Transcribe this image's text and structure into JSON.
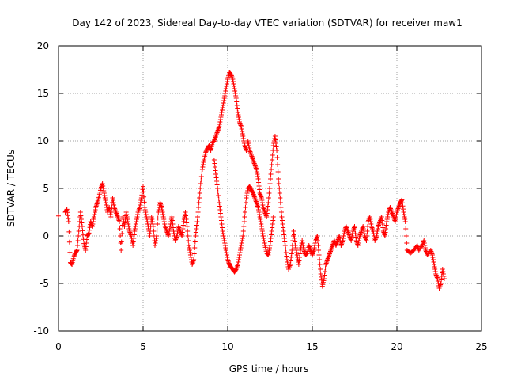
{
  "chart_data": {
    "type": "scatter",
    "title": "Day 142 of 2023, Sidereal Day-to-day VTEC variation (SDTVAR) for receiver maw1",
    "xlabel": "GPS time / hours",
    "ylabel": "SDTVAR / TECUs",
    "xlim": [
      0,
      25
    ],
    "ylim": [
      -10,
      20
    ],
    "xticks": [
      0,
      5,
      10,
      15,
      20,
      25
    ],
    "yticks": [
      -10,
      -5,
      0,
      5,
      10,
      15,
      20
    ],
    "grid": true,
    "marker": "+",
    "color": "#ff0000",
    "series": [
      {
        "name": "SDTVAR",
        "points": [
          [
            0.0,
            2.1
          ],
          [
            0.4,
            2.5
          ],
          [
            0.5,
            2.8
          ],
          [
            0.6,
            1.5
          ],
          [
            0.7,
            -2.8
          ],
          [
            0.8,
            -3.0
          ],
          [
            0.9,
            -2.2
          ],
          [
            1.0,
            -1.8
          ],
          [
            1.1,
            -1.5
          ],
          [
            1.2,
            0.5
          ],
          [
            1.3,
            2.5
          ],
          [
            1.4,
            1.0
          ],
          [
            1.5,
            -0.8
          ],
          [
            1.6,
            -1.5
          ],
          [
            1.7,
            0.0
          ],
          [
            1.8,
            0.3
          ],
          [
            1.9,
            1.5
          ],
          [
            2.0,
            1.0
          ],
          [
            2.1,
            2.0
          ],
          [
            2.2,
            3.0
          ],
          [
            2.3,
            3.5
          ],
          [
            2.4,
            4.2
          ],
          [
            2.5,
            5.0
          ],
          [
            2.6,
            5.5
          ],
          [
            2.7,
            4.5
          ],
          [
            2.8,
            3.5
          ],
          [
            2.9,
            2.5
          ],
          [
            3.0,
            3.0
          ],
          [
            3.1,
            2.0
          ],
          [
            3.2,
            4.0
          ],
          [
            3.3,
            3.0
          ],
          [
            3.4,
            2.5
          ],
          [
            3.5,
            2.0
          ],
          [
            3.6,
            1.5
          ],
          [
            3.7,
            -1.5
          ],
          [
            3.8,
            2.0
          ],
          [
            3.9,
            1.0
          ],
          [
            4.0,
            2.5
          ],
          [
            4.1,
            1.5
          ],
          [
            4.2,
            0.5
          ],
          [
            4.3,
            0.0
          ],
          [
            4.4,
            -1.0
          ],
          [
            4.5,
            0.5
          ],
          [
            4.6,
            1.5
          ],
          [
            4.7,
            2.5
          ],
          [
            4.8,
            3.0
          ],
          [
            4.9,
            4.0
          ],
          [
            5.0,
            5.2
          ],
          [
            5.1,
            3.0
          ],
          [
            5.2,
            2.0
          ],
          [
            5.3,
            1.0
          ],
          [
            5.4,
            0.0
          ],
          [
            5.5,
            2.0
          ],
          [
            5.6,
            1.0
          ],
          [
            5.7,
            -1.0
          ],
          [
            5.8,
            0.0
          ],
          [
            5.9,
            2.5
          ],
          [
            6.0,
            3.5
          ],
          [
            6.1,
            3.0
          ],
          [
            6.2,
            2.0
          ],
          [
            6.3,
            1.0
          ],
          [
            6.4,
            0.5
          ],
          [
            6.5,
            0.0
          ],
          [
            6.6,
            1.0
          ],
          [
            6.7,
            2.0
          ],
          [
            6.8,
            0.5
          ],
          [
            6.9,
            -0.5
          ],
          [
            7.0,
            0.0
          ],
          [
            7.1,
            1.0
          ],
          [
            7.2,
            0.5
          ],
          [
            7.3,
            0.0
          ],
          [
            7.4,
            1.5
          ],
          [
            7.5,
            2.5
          ],
          [
            7.6,
            1.0
          ],
          [
            7.7,
            -1.0
          ],
          [
            7.8,
            -2.0
          ],
          [
            7.9,
            -3.0
          ],
          [
            8.0,
            -2.5
          ],
          [
            8.1,
            0.0
          ],
          [
            8.2,
            1.5
          ],
          [
            8.3,
            3.5
          ],
          [
            8.4,
            5.5
          ],
          [
            8.5,
            7.0
          ],
          [
            8.6,
            8.0
          ],
          [
            8.7,
            8.8
          ],
          [
            8.8,
            9.2
          ],
          [
            8.9,
            9.5
          ],
          [
            9.0,
            9.0
          ],
          [
            9.1,
            9.8
          ],
          [
            9.2,
            10.0
          ],
          [
            9.3,
            10.5
          ],
          [
            9.4,
            11.0
          ],
          [
            9.5,
            11.5
          ],
          [
            9.6,
            12.5
          ],
          [
            9.7,
            13.5
          ],
          [
            9.8,
            14.5
          ],
          [
            9.9,
            15.5
          ],
          [
            10.0,
            16.5
          ],
          [
            10.1,
            17.2
          ],
          [
            10.2,
            17.0
          ],
          [
            10.3,
            16.5
          ],
          [
            10.4,
            15.5
          ],
          [
            10.5,
            14.5
          ],
          [
            10.6,
            13.0
          ],
          [
            10.7,
            12.0
          ],
          [
            10.8,
            11.5
          ],
          [
            10.9,
            10.5
          ],
          [
            11.0,
            9.5
          ],
          [
            11.1,
            9.0
          ],
          [
            11.2,
            10.0
          ],
          [
            11.3,
            9.0
          ],
          [
            11.4,
            8.5
          ],
          [
            11.5,
            8.0
          ],
          [
            11.6,
            7.5
          ],
          [
            11.7,
            7.0
          ],
          [
            11.8,
            6.0
          ],
          [
            11.9,
            4.5
          ],
          [
            12.0,
            4.0
          ],
          [
            12.1,
            3.0
          ],
          [
            12.2,
            2.5
          ],
          [
            12.3,
            2.0
          ],
          [
            12.4,
            3.5
          ],
          [
            12.5,
            5.5
          ],
          [
            12.6,
            7.5
          ],
          [
            12.7,
            9.5
          ],
          [
            12.8,
            10.5
          ],
          [
            12.9,
            9.0
          ],
          [
            13.0,
            6.0
          ],
          [
            13.1,
            4.0
          ],
          [
            13.2,
            2.0
          ],
          [
            13.3,
            0.5
          ],
          [
            13.4,
            -1.0
          ],
          [
            13.5,
            -2.5
          ],
          [
            13.6,
            -3.5
          ],
          [
            13.7,
            -3.0
          ],
          [
            13.8,
            -1.5
          ],
          [
            13.9,
            0.5
          ],
          [
            14.0,
            -1.0
          ],
          [
            14.1,
            -2.0
          ],
          [
            14.2,
            -3.0
          ],
          [
            14.3,
            -1.5
          ],
          [
            14.4,
            -0.5
          ],
          [
            14.5,
            -1.5
          ],
          [
            14.6,
            -2.0
          ],
          [
            14.7,
            -1.8
          ],
          [
            14.8,
            -1.0
          ],
          [
            14.9,
            -1.5
          ],
          [
            15.0,
            -2.0
          ],
          [
            15.1,
            -1.5
          ],
          [
            15.2,
            -0.5
          ],
          [
            15.3,
            0.0
          ],
          [
            15.4,
            -2.0
          ],
          [
            15.5,
            -4.0
          ],
          [
            15.6,
            -5.3
          ],
          [
            15.7,
            -4.5
          ],
          [
            15.8,
            -3.0
          ],
          [
            15.9,
            -2.5
          ],
          [
            16.0,
            -2.0
          ],
          [
            16.1,
            -1.5
          ],
          [
            16.2,
            -1.0
          ],
          [
            16.3,
            -0.5
          ],
          [
            16.4,
            -1.0
          ],
          [
            16.5,
            -0.5
          ],
          [
            16.6,
            0.0
          ],
          [
            16.7,
            -1.0
          ],
          [
            16.8,
            -0.5
          ],
          [
            16.9,
            0.5
          ],
          [
            17.0,
            1.0
          ],
          [
            17.1,
            0.5
          ],
          [
            17.2,
            0.0
          ],
          [
            17.3,
            -0.5
          ],
          [
            17.4,
            0.5
          ],
          [
            17.5,
            1.0
          ],
          [
            17.6,
            -0.5
          ],
          [
            17.7,
            -1.0
          ],
          [
            17.8,
            0.0
          ],
          [
            17.9,
            0.5
          ],
          [
            18.0,
            1.0
          ],
          [
            18.1,
            0.0
          ],
          [
            18.2,
            -0.5
          ],
          [
            18.3,
            1.5
          ],
          [
            18.4,
            2.0
          ],
          [
            18.5,
            1.0
          ],
          [
            18.6,
            0.5
          ],
          [
            18.7,
            -0.5
          ],
          [
            18.8,
            0.0
          ],
          [
            18.9,
            1.0
          ],
          [
            19.0,
            1.5
          ],
          [
            19.1,
            2.0
          ],
          [
            19.2,
            0.5
          ],
          [
            19.3,
            0.0
          ],
          [
            19.4,
            1.5
          ],
          [
            19.5,
            2.5
          ],
          [
            19.6,
            3.0
          ],
          [
            19.7,
            2.5
          ],
          [
            19.8,
            2.0
          ],
          [
            19.9,
            1.5
          ],
          [
            20.0,
            2.5
          ],
          [
            20.1,
            3.0
          ],
          [
            20.2,
            3.5
          ],
          [
            20.3,
            3.8
          ],
          [
            20.4,
            2.5
          ],
          [
            20.5,
            1.5
          ],
          [
            20.6,
            -1.5
          ],
          [
            20.8,
            -1.8
          ],
          [
            21.0,
            -1.5
          ],
          [
            21.2,
            -1.0
          ],
          [
            21.3,
            -1.5
          ],
          [
            21.5,
            -1.0
          ],
          [
            21.6,
            -0.5
          ],
          [
            21.7,
            -1.5
          ],
          [
            21.8,
            -2.0
          ],
          [
            22.0,
            -1.5
          ],
          [
            22.1,
            -2.0
          ],
          [
            22.2,
            -3.0
          ],
          [
            22.3,
            -4.0
          ],
          [
            22.4,
            -4.5
          ],
          [
            22.5,
            -5.5
          ],
          [
            22.6,
            -5.0
          ],
          [
            22.7,
            -3.5
          ],
          [
            22.8,
            -4.5
          ]
        ],
        "secondary_branch": [
          [
            9.2,
            8.0
          ],
          [
            9.3,
            6.5
          ],
          [
            9.4,
            5.0
          ],
          [
            9.5,
            3.5
          ],
          [
            9.6,
            2.0
          ],
          [
            9.7,
            0.5
          ],
          [
            9.8,
            -0.5
          ],
          [
            9.9,
            -1.5
          ],
          [
            10.0,
            -2.5
          ],
          [
            10.1,
            -3.0
          ],
          [
            10.2,
            -3.3
          ],
          [
            10.3,
            -3.5
          ],
          [
            10.4,
            -3.8
          ],
          [
            10.5,
            -3.5
          ],
          [
            10.6,
            -3.0
          ],
          [
            10.7,
            -2.0
          ],
          [
            10.8,
            -1.0
          ],
          [
            10.9,
            0.0
          ],
          [
            11.0,
            2.0
          ],
          [
            11.1,
            4.0
          ],
          [
            11.2,
            5.0
          ],
          [
            11.3,
            5.2
          ],
          [
            11.4,
            4.8
          ],
          [
            11.5,
            4.5
          ],
          [
            11.6,
            4.0
          ],
          [
            11.7,
            3.5
          ],
          [
            11.8,
            3.0
          ],
          [
            11.9,
            2.0
          ],
          [
            12.0,
            1.0
          ],
          [
            12.1,
            0.0
          ],
          [
            12.2,
            -1.0
          ],
          [
            12.3,
            -1.8
          ],
          [
            12.4,
            -2.0
          ],
          [
            12.5,
            -1.0
          ],
          [
            12.6,
            0.5
          ],
          [
            12.7,
            2.0
          ]
        ]
      }
    ]
  }
}
